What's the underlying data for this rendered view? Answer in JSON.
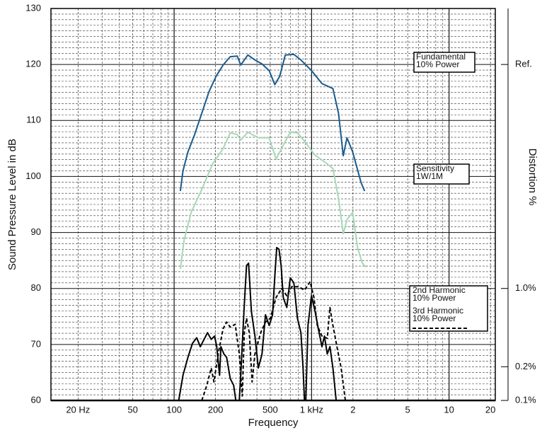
{
  "chart_data": {
    "type": "line",
    "xlabel": "Frequency",
    "ylabel": "Sound Pressure Level in dB",
    "y2label": "Distortion %",
    "xscale": "log",
    "xlim": [
      12.7,
      21700
    ],
    "ylim": [
      60,
      130
    ],
    "y2scale": "log",
    "y2lim": [
      0.1,
      316.2
    ],
    "xticks": [
      {
        "value": 20,
        "label": "20 Hz"
      },
      50,
      100,
      200,
      500,
      {
        "value": 1000,
        "label": "1 kHz"
      },
      {
        "value": 2000,
        "label": "2"
      },
      {
        "value": 5000,
        "label": "5"
      },
      {
        "value": 10000,
        "label": "10"
      },
      {
        "value": 20000,
        "label": "20"
      }
    ],
    "xminorticks": [
      30,
      40,
      60,
      70,
      80,
      90,
      300,
      400,
      600,
      700,
      800,
      900,
      3000,
      4000,
      6000,
      7000,
      8000,
      9000
    ],
    "yticks": [
      60,
      70,
      80,
      90,
      100,
      110,
      120,
      130
    ],
    "yminorticks": [
      61,
      62,
      63,
      64,
      65,
      66,
      67,
      68,
      69,
      71,
      72,
      73,
      74,
      75,
      76,
      77,
      78,
      79,
      81,
      82,
      83,
      84,
      85,
      86,
      87,
      88,
      89,
      91,
      92,
      93,
      94,
      95,
      96,
      97,
      98,
      99,
      101,
      102,
      103,
      104,
      105,
      106,
      107,
      108,
      109,
      111,
      112,
      113,
      114,
      115,
      116,
      117,
      118,
      119,
      121,
      122,
      123,
      124,
      125,
      126,
      127,
      128,
      129
    ],
    "y2ticks": [
      {
        "value": 0.1,
        "label": "0.1%"
      },
      {
        "value": 0.2,
        "label": "0.2%"
      },
      {
        "value": 1,
        "label": "1.0%"
      },
      {
        "value": 100,
        "label": "Ref."
      }
    ],
    "grid": true,
    "series": [
      {
        "name": [
          "Fundamental",
          "10% Power"
        ],
        "color": "#1b5b8c",
        "dash": "solid",
        "x": [
          111,
          116,
          126,
          141,
          159,
          179,
          202,
          227,
          256,
          288,
          305,
          344,
          387,
          436,
          491,
          540,
          586,
          644,
          743,
          836,
          998,
          1190,
          1430,
          1570,
          1700,
          1810,
          1990,
          2160,
          2290,
          2430
        ],
        "values": [
          97.4,
          101,
          104.4,
          107.5,
          111.3,
          115.1,
          117.9,
          119.9,
          121.4,
          121.5,
          119.9,
          121.7,
          120.8,
          120.1,
          118.9,
          116.4,
          117.9,
          121.7,
          121.8,
          120.8,
          118.9,
          116.6,
          115.7,
          111.3,
          103.7,
          106.9,
          104.4,
          101.2,
          98.9,
          97.4
        ]
      },
      {
        "name": [
          "Sensitivity",
          "1W/1M"
        ],
        "color": "#a8d8b6",
        "dash": "solid",
        "x": [
          111,
          118,
          133,
          159,
          190,
          227,
          256,
          288,
          305,
          344,
          410,
          491,
          552,
          622,
          700,
          788,
          887,
          1060,
          1260,
          1430,
          1570,
          1700,
          1810,
          1990,
          2160,
          2340,
          2490
        ],
        "values": [
          83.5,
          88.6,
          93.6,
          97.7,
          102.2,
          105,
          107.8,
          107.5,
          106.5,
          107.9,
          106.9,
          106.9,
          103.1,
          105.6,
          107.9,
          107.8,
          106.3,
          103.8,
          102.5,
          101.4,
          96.1,
          89.8,
          92.3,
          93.6,
          87.3,
          84.5,
          83.8
        ]
      },
      {
        "name": [
          "2nd Harmonic",
          "10% Power"
        ],
        "color": "#000000",
        "dash": "solid",
        "x": [
          108,
          116,
          126,
          136,
          146,
          155,
          165,
          175,
          186,
          197,
          204,
          214,
          219,
          230,
          241,
          256,
          271,
          281,
          298,
          305,
          324,
          336,
          348,
          365,
          387,
          410,
          436,
          462,
          491,
          520,
          540,
          558,
          579,
          600,
          622,
          660,
          700,
          743,
          788,
          836,
          867,
          887,
          908,
          942,
          998,
          1060,
          1120,
          1190,
          1240,
          1300,
          1360,
          1430,
          1510
        ],
        "values": [
          60,
          64.5,
          67.7,
          70.2,
          71.2,
          69.6,
          70.9,
          72.1,
          70.9,
          71.5,
          69.6,
          64.5,
          69.6,
          68.3,
          67.7,
          63.9,
          62.7,
          60,
          60,
          64.5,
          77.2,
          84.1,
          84.5,
          75.9,
          71.5,
          65.8,
          68.3,
          75.3,
          73.4,
          75.3,
          82.2,
          87.3,
          87,
          84.1,
          78.4,
          76.6,
          81.9,
          81,
          74.7,
          72.1,
          65.8,
          60,
          60,
          73.4,
          78.7,
          75.9,
          72.8,
          69.6,
          71.5,
          68.3,
          69.6,
          65.8,
          60
        ]
      },
      {
        "name": [
          "3rd Harmonic",
          "10% Power"
        ],
        "color": "#000000",
        "dash": "dashed",
        "x": [
          159,
          173,
          186,
          195,
          209,
          227,
          241,
          256,
          278,
          298,
          313,
          324,
          336,
          352,
          369,
          387,
          426,
          462,
          502,
          552,
          607,
          660,
          716,
          807,
          887,
          975,
          1040,
          1100,
          1190,
          1300,
          1360,
          1430,
          1530,
          1640,
          1760
        ],
        "values": [
          60,
          62.7,
          65.8,
          63.3,
          68.3,
          72.8,
          74,
          73.1,
          73.6,
          68.3,
          60.8,
          72.1,
          74.7,
          72.1,
          63.3,
          68.3,
          72.1,
          74,
          74.7,
          78.4,
          80,
          78.7,
          80.3,
          80.3,
          79.7,
          81.2,
          78.4,
          73.4,
          71.5,
          71.1,
          76.6,
          73.4,
          69.6,
          65.8,
          60
        ]
      }
    ]
  }
}
